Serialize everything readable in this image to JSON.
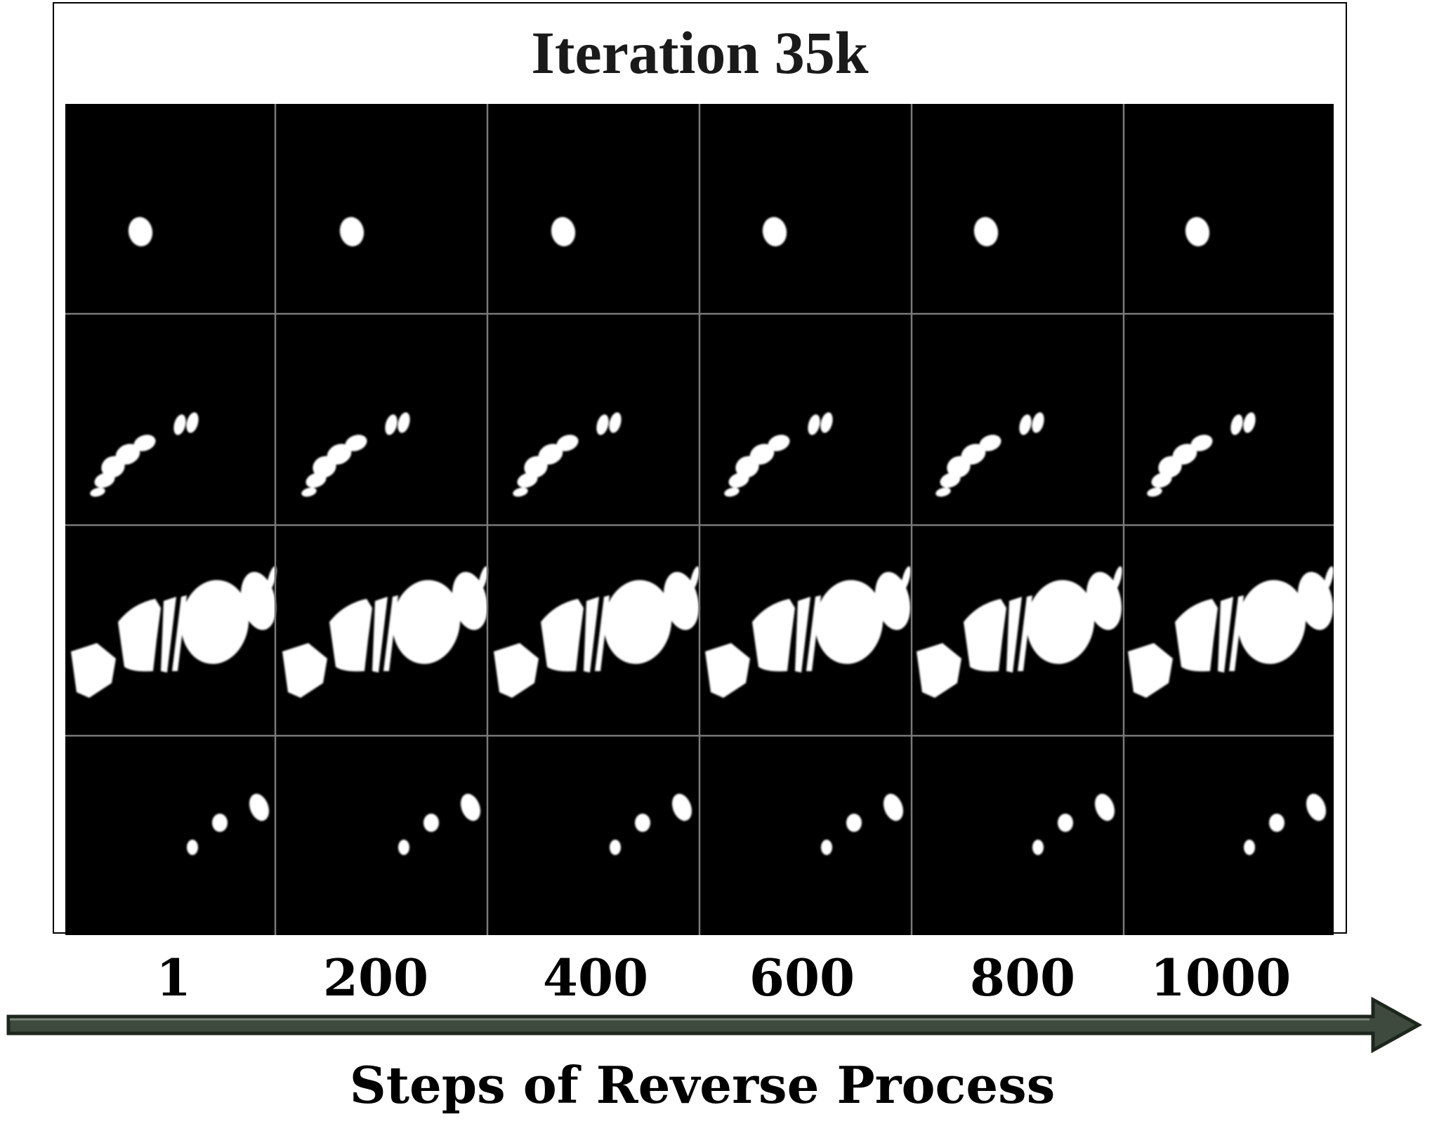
{
  "title": "Iteration 35k",
  "steps": [
    "1",
    "200",
    "400",
    "600",
    "800",
    "1000"
  ],
  "axis_label": "Steps of Reverse Process",
  "grid": {
    "rows": 4,
    "columns": 6,
    "content": "segmentation-mask samples"
  },
  "colors": {
    "tile_background": "#000000",
    "mask": "#ffffff",
    "grid_line": "#7a7a7a",
    "arrow_fill": "#3e4a3e",
    "arrow_stroke": "#1d261d"
  }
}
